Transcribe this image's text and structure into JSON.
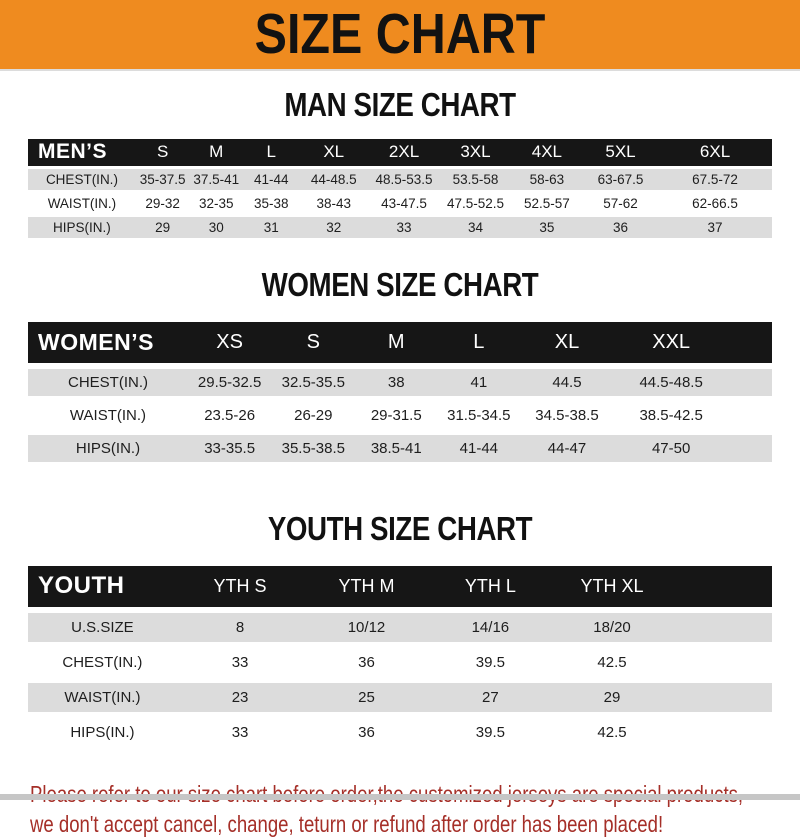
{
  "banner": {
    "title": "SIZE CHART"
  },
  "colors": {
    "banner_bg": "#EF8B1F",
    "header_bg": "#161616",
    "row_alt_bg": "#DCDCDC",
    "disclaimer_red": "#A52F28"
  },
  "men": {
    "heading": "MAN SIZE CHART",
    "corner_label": "MEN’S",
    "sizes": [
      "S",
      "M",
      "L",
      "XL",
      "2XL",
      "3XL",
      "4XL",
      "5XL",
      "6XL"
    ],
    "rows": [
      {
        "label": "CHEST(IN.)",
        "values": [
          "35-37.5",
          "37.5-41",
          "41-44",
          "44-48.5",
          "48.5-53.5",
          "53.5-58",
          "58-63",
          "63-67.5",
          "67.5-72"
        ]
      },
      {
        "label": "WAIST(IN.)",
        "values": [
          "29-32",
          "32-35",
          "35-38",
          "38-43",
          "43-47.5",
          "47.5-52.5",
          "52.5-57",
          "57-62",
          "62-66.5"
        ]
      },
      {
        "label": "HIPS(IN.)",
        "values": [
          "29",
          "30",
          "31",
          "32",
          "33",
          "34",
          "35",
          "36",
          "37"
        ]
      }
    ]
  },
  "women": {
    "heading": "WOMEN SIZE CHART",
    "corner_label": "WOMEN’S",
    "sizes": [
      "XS",
      "S",
      "M",
      "L",
      "XL",
      "XXL"
    ],
    "rows": [
      {
        "label": "CHEST(IN.)",
        "values": [
          "29.5-32.5",
          "32.5-35.5",
          "38",
          "41",
          "44.5",
          "44.5-48.5"
        ]
      },
      {
        "label": "WAIST(IN.)",
        "values": [
          "23.5-26",
          "26-29",
          "29-31.5",
          "31.5-34.5",
          "34.5-38.5",
          "38.5-42.5"
        ]
      },
      {
        "label": "HIPS(IN.)",
        "values": [
          "33-35.5",
          "35.5-38.5",
          "38.5-41",
          "41-44",
          "44-47",
          "47-50"
        ]
      }
    ]
  },
  "youth": {
    "heading": "YOUTH SIZE CHART",
    "corner_label": "YOUTH",
    "sizes": [
      "YTH S",
      "YTH M",
      "YTH L",
      "YTH XL"
    ],
    "rows": [
      {
        "label": "U.S.SIZE",
        "values": [
          "8",
          "10/12",
          "14/16",
          "18/20"
        ]
      },
      {
        "label": "CHEST(IN.)",
        "values": [
          "33",
          "36",
          "39.5",
          "42.5"
        ]
      },
      {
        "label": "WAIST(IN.)",
        "values": [
          "23",
          "25",
          "27",
          "29"
        ]
      },
      {
        "label": "HIPS(IN.)",
        "values": [
          "33",
          "36",
          "39.5",
          "42.5"
        ]
      }
    ]
  },
  "disclaimer": {
    "line1": "Please refer to our size chart before order,the customized jerseys are special products,",
    "line2": "we don't accept cancel, change, teturn or refund after order has been placed!"
  }
}
